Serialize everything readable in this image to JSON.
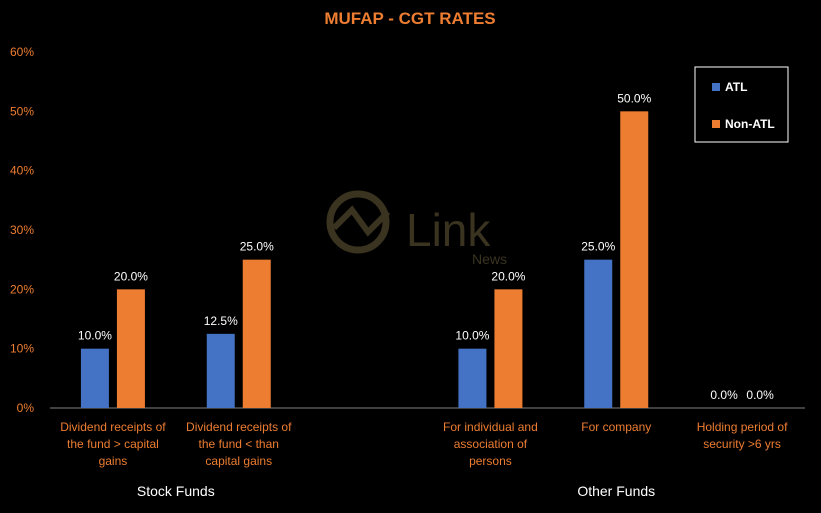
{
  "chart_data": {
    "type": "bar",
    "title": "MUFAP - CGT RATES",
    "ylim": [
      0,
      60
    ],
    "yticks": [
      "0%",
      "10%",
      "20%",
      "30%",
      "40%",
      "50%",
      "60%"
    ],
    "categories": [
      [
        "Dividend receipts of",
        "the fund > capital",
        "gains"
      ],
      [
        "Dividend receipts of",
        "the fund < than",
        "capital gains"
      ],
      [],
      [
        "For individual and",
        "association of",
        "persons"
      ],
      [
        "For company"
      ],
      [
        "Holding period of",
        "security >6 yrs"
      ]
    ],
    "series": [
      {
        "name": "ATL",
        "color": "#4472c4",
        "values": [
          10,
          12.5,
          null,
          10,
          25,
          0
        ],
        "labels": [
          "10.0%",
          "12.5%",
          "",
          "10.0%",
          "25.0%",
          "0.0%"
        ]
      },
      {
        "name": "Non-ATL",
        "color": "#ed7d31",
        "values": [
          20,
          25,
          null,
          20,
          50,
          0
        ],
        "labels": [
          "20.0%",
          "25.0%",
          "",
          "20.0%",
          "50.0%",
          "0.0%"
        ]
      }
    ],
    "groups": [
      {
        "label": "Stock Funds",
        "span": [
          0,
          1
        ]
      },
      {
        "label": "Other Funds",
        "span": [
          3,
          5
        ]
      }
    ],
    "legend_position": "top-right",
    "grid": false
  },
  "watermark": {
    "brand": "Link",
    "sub": "News"
  }
}
